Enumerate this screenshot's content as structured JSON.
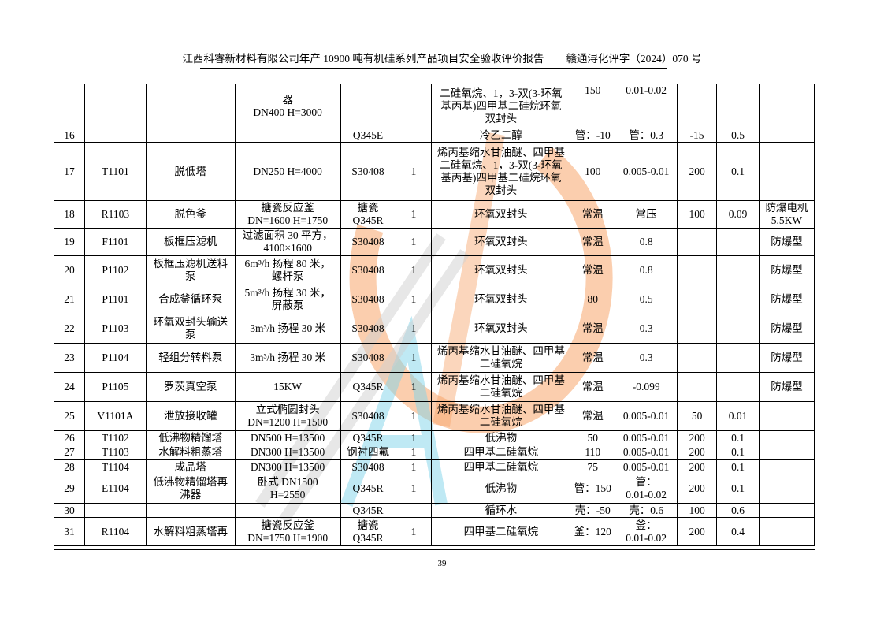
{
  "header": {
    "title": "江西科睿新材料有限公司年产 10900 吨有机硅系列产品项目安全验收评价报告",
    "doc_number": "赣通浔化评字（2024）070 号"
  },
  "watermark_colors": {
    "orange": "#f7a56b",
    "cyan": "#7fd3ea",
    "gray": "#cfcfcf"
  },
  "table": {
    "rows": [
      [
        "",
        "",
        "",
        "器\nDN400 H=3000",
        "",
        "",
        "二硅氧烷、1，3-双(3-环氧\n基丙基)四甲基二硅烷环氧\n双封头",
        "150",
        "0.01-0.02",
        "",
        "",
        ""
      ],
      [
        "16",
        "",
        "",
        "",
        "Q345E",
        "",
        "冷乙二醇",
        "管：-10",
        "管：0.3",
        "-15",
        "0.5",
        ""
      ],
      [
        "17",
        "T1101",
        "脱低塔",
        "DN250 H=4000",
        "S30408",
        "1",
        "烯丙基缩水甘油醚、四甲基\n二硅氧烷、1，3-双(3-环氧\n基丙基)四甲基二硅烷环氧\n双封头",
        "100",
        "0.005-0.01",
        "200",
        "0.1",
        ""
      ],
      [
        "18",
        "R1103",
        "脱色釜",
        "搪瓷反应釜\nDN=1600 H=1750",
        "搪瓷\nQ345R",
        "1",
        "环氧双封头",
        "常温",
        "常压",
        "100",
        "0.09",
        "防爆电机\n5.5KW"
      ],
      [
        "19",
        "F1101",
        "板框压滤机",
        "过滤面积 30 平方，\n4100×1600",
        "S30408",
        "1",
        "环氧双封头",
        "常温",
        "0.8",
        "",
        "",
        "防爆型"
      ],
      [
        "20",
        "P1102",
        "板框压滤机送料\n泵",
        "6m³/h  扬程 80 米，\n螺杆泵",
        "S30408",
        "1",
        "环氧双封头",
        "常温",
        "0.8",
        "",
        "",
        "防爆型"
      ],
      [
        "21",
        "P1101",
        "合成釜循环泵",
        "5m³/h  扬程 30 米，\n屏蔽泵",
        "S30408",
        "1",
        "环氧双封头",
        "80",
        "0.5",
        "",
        "",
        "防爆型"
      ],
      [
        "22",
        "P1103",
        "环氧双封头输送\n泵",
        "3m³/h  扬程 30 米",
        "S30408",
        "1",
        "环氧双封头",
        "常温",
        "0.3",
        "",
        "",
        "防爆型"
      ],
      [
        "23",
        "P1104",
        "轻组分转料泵",
        "3m³/h  扬程 30 米",
        "S30408",
        "1",
        "烯丙基缩水甘油醚、四甲基\n二硅氧烷",
        "常温",
        "0.3",
        "",
        "",
        "防爆型"
      ],
      [
        "24",
        "P1105",
        "罗茨真空泵",
        "15KW",
        "Q345R",
        "1",
        "烯丙基缩水甘油醚、四甲基\n二硅氧烷",
        "常温",
        "-0.099",
        "",
        "",
        "防爆型"
      ],
      [
        "25",
        "V1101A",
        "泄放接收罐",
        "立式椭圆封头\nDN=1200 H=1500",
        "S30408",
        "1",
        "烯丙基缩水甘油醚、四甲基\n二硅氧烷",
        "常温",
        "0.005-0.01",
        "50",
        "0.01",
        ""
      ],
      [
        "26",
        "T1102",
        "低沸物精馏塔",
        "DN500 H=13500",
        "Q345R",
        "1",
        "低沸物",
        "50",
        "0.005-0.01",
        "200",
        "0.1",
        ""
      ],
      [
        "27",
        "T1103",
        "水解料粗蒸塔",
        "DN300 H=13500",
        "钢衬四氟",
        "1",
        "四甲基二硅氧烷",
        "110",
        "0.005-0.01",
        "200",
        "0.1",
        ""
      ],
      [
        "28",
        "T1104",
        "成品塔",
        "DN300 H=13500",
        "S30408",
        "1",
        "四甲基二硅氧烷",
        "75",
        "0.005-0.01",
        "200",
        "0.1",
        ""
      ],
      [
        "29",
        "E1104",
        "低沸物精馏塔再\n沸器",
        "卧式  DN1500\nH=2550",
        "Q345R",
        "1",
        "低沸物",
        "管：150",
        "管：\n0.01-0.02",
        "200",
        "0.1",
        ""
      ],
      [
        "30",
        "",
        "",
        "",
        "Q345R",
        "",
        "循环水",
        "壳：-50",
        "壳：0.6",
        "100",
        "0.6",
        ""
      ],
      [
        "31",
        "R1104",
        "水解料粗蒸塔再",
        "搪瓷反应釜\nDN=1750 H=1900",
        "搪瓷\nQ345R",
        "1",
        "四甲基二硅氧烷",
        "釜：120",
        "釜：\n0.01-0.02",
        "200",
        "0.4",
        ""
      ]
    ]
  },
  "footer": {
    "page_number": "39"
  }
}
